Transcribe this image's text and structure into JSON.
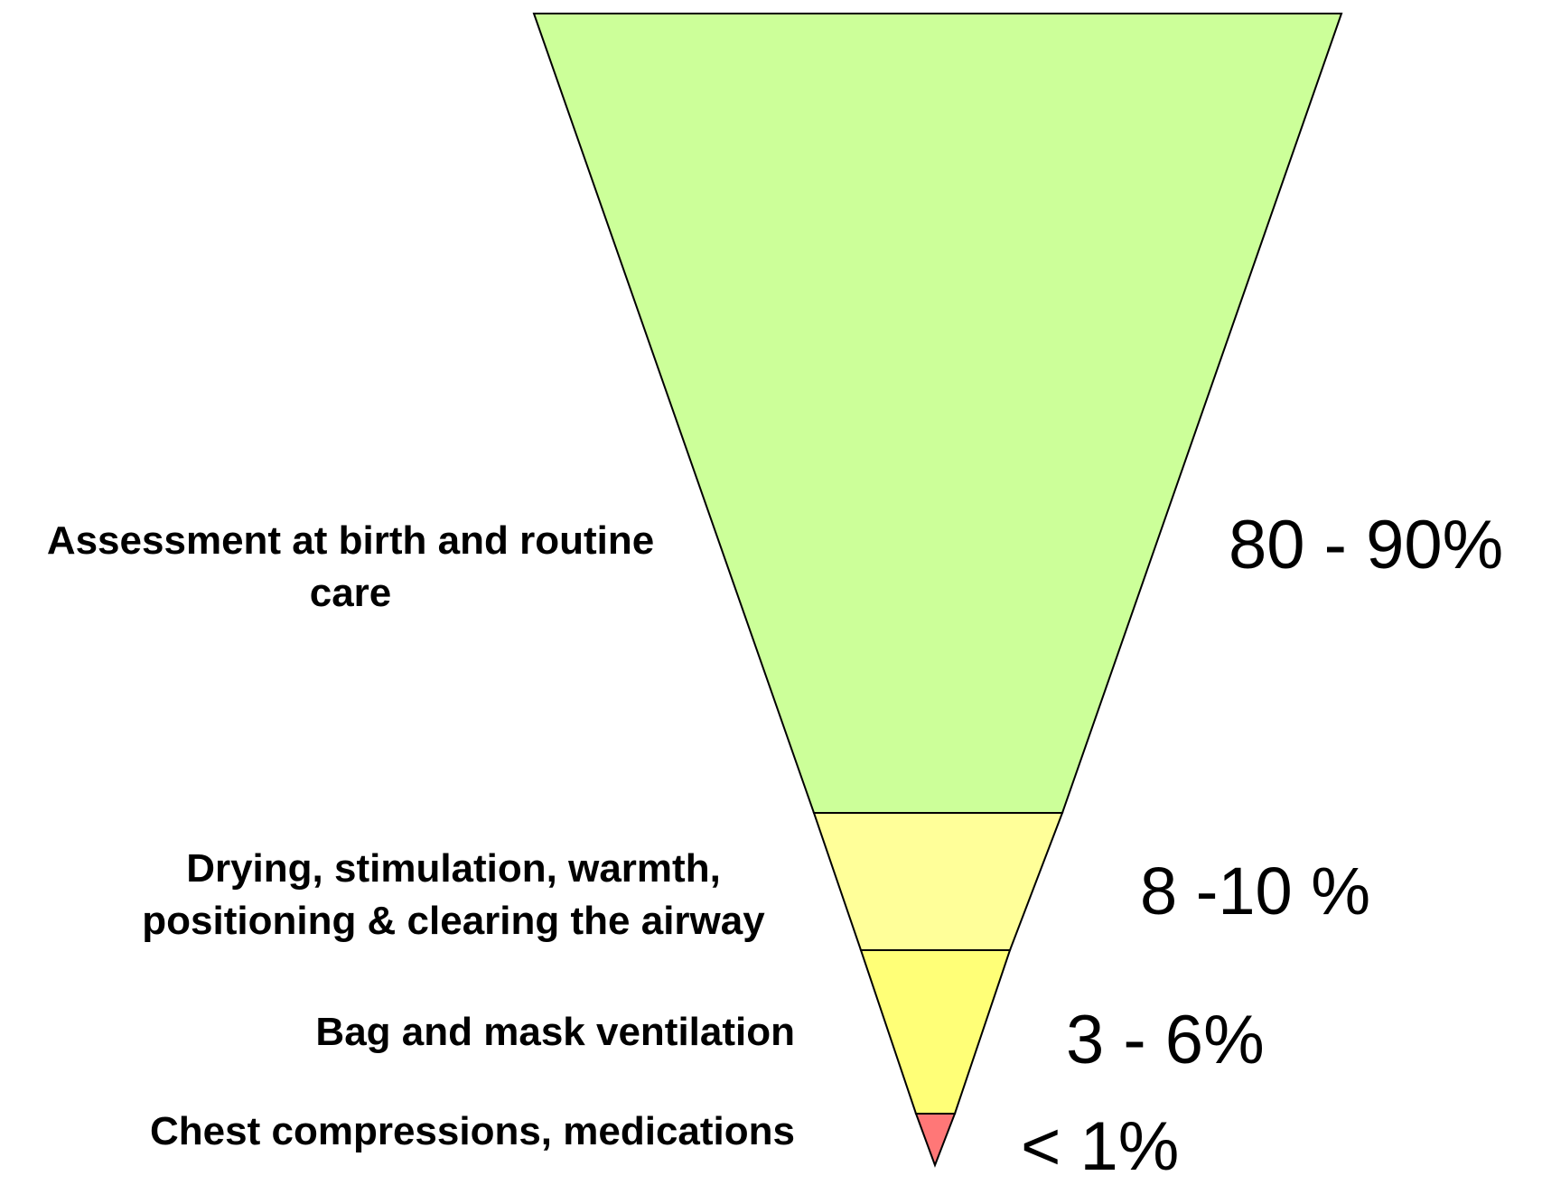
{
  "tiers": [
    {
      "id": "assessment",
      "label_lines": [
        "Assessment at birth and routine",
        "care"
      ],
      "percentage": "80 - 90%",
      "color": "#ccff99"
    },
    {
      "id": "drying",
      "label_lines": [
        "Drying, stimulation, warmth,",
        "positioning & clearing the airway"
      ],
      "percentage": "8 -10 %",
      "color": "#ffff99"
    },
    {
      "id": "ventilation",
      "label_lines": [
        "Bag and mask ventilation"
      ],
      "percentage": "3 - 6%",
      "color": "#ffff77"
    },
    {
      "id": "compressions",
      "label_lines": [
        "Chest compressions, medications"
      ],
      "percentage": "< 1%",
      "color": "#ff7777"
    }
  ],
  "outline_color": "#000000"
}
